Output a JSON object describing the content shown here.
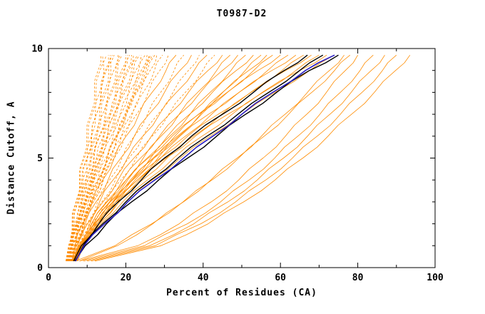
{
  "chart_data": {
    "type": "line",
    "title": "T0987-D2",
    "xlabel": "Percent of Residues (CA)",
    "ylabel": "Distance Cutoff, A",
    "xlim": [
      0,
      100
    ],
    "ylim": [
      0,
      10
    ],
    "x_ticks": [
      0,
      20,
      40,
      60,
      80,
      100
    ],
    "y_ticks": [
      0,
      5,
      10
    ],
    "x_minor_step": 10,
    "y_minor_step": 1,
    "grid": false,
    "legend": "none",
    "axis_color": "#000000",
    "background": "#ffffff",
    "y_samples": [
      0.3,
      1,
      2,
      3,
      4,
      5,
      6,
      7,
      8,
      9,
      9.7
    ],
    "groups": [
      {
        "name": "prediction-curves-dashed",
        "color": "#ff8c00",
        "width": 0.8,
        "dash": "3 2.5",
        "curves": [
          [
            4.5,
            5.2,
            6.1,
            7.1,
            8.0,
            9.0,
            9.9,
            10.9,
            11.9,
            12.8,
            13.5
          ],
          [
            5.0,
            5.7,
            6.8,
            7.9,
            8.9,
            10.0,
            11.1,
            12.1,
            13.2,
            14.3,
            15.0
          ],
          [
            4.8,
            5.4,
            6.4,
            7.5,
            8.6,
            9.9,
            11.1,
            12.4,
            13.7,
            15.0,
            16.0
          ],
          [
            5.2,
            6.1,
            7.3,
            8.6,
            9.8,
            11.1,
            12.4,
            13.6,
            14.9,
            16.1,
            17.0
          ],
          [
            5.5,
            6.1,
            7.3,
            8.5,
            9.8,
            11.1,
            12.5,
            14.0,
            15.4,
            16.9,
            18.0
          ],
          [
            4.6,
            5.7,
            7.2,
            8.7,
            10.3,
            11.8,
            13.3,
            14.9,
            16.4,
            17.9,
            19.0
          ],
          [
            5.0,
            6.1,
            7.7,
            9.3,
            10.9,
            12.5,
            14.1,
            15.7,
            17.3,
            18.9,
            20.0
          ],
          [
            5.4,
            6.2,
            7.6,
            9.1,
            10.8,
            12.4,
            14.2,
            16.0,
            17.8,
            19.7,
            21.0
          ],
          [
            4.7,
            6.0,
            7.8,
            9.7,
            11.5,
            13.4,
            15.2,
            17.0,
            18.9,
            20.7,
            22.0
          ],
          [
            5.1,
            6.0,
            7.6,
            9.4,
            11.2,
            13.2,
            15.2,
            17.2,
            19.3,
            21.5,
            23.0
          ],
          [
            5.6,
            7.0,
            8.9,
            10.9,
            12.8,
            14.8,
            16.7,
            18.7,
            20.7,
            22.6,
            24.0
          ],
          [
            4.9,
            5.9,
            7.7,
            9.7,
            11.8,
            14.0,
            16.2,
            18.5,
            20.9,
            23.3,
            25.0
          ],
          [
            5.3,
            6.8,
            9.0,
            11.2,
            13.5,
            15.7,
            17.8,
            20.1,
            22.3,
            24.5,
            26.0
          ],
          [
            5.7,
            6.8,
            8.7,
            10.8,
            13.0,
            15.3,
            17.7,
            20.1,
            22.6,
            25.2,
            27.0
          ],
          [
            5.0,
            6.7,
            9.2,
            11.6,
            14.1,
            16.5,
            18.9,
            21.4,
            23.8,
            26.3,
            28.0
          ],
          [
            5.2,
            6.4,
            8.6,
            11.0,
            13.5,
            16.2,
            18.9,
            21.7,
            24.5,
            27.4,
            29.5
          ],
          [
            4.6,
            5.4,
            6.6,
            7.7,
            8.9,
            10.1,
            11.2,
            12.4,
            13.5,
            14.7,
            15.5
          ],
          [
            4.8,
            5.8,
            7.3,
            8.7,
            10.2,
            11.7,
            13.1,
            14.6,
            16.0,
            17.5,
            18.5
          ],
          [
            5.1,
            6.3,
            7.9,
            9.5,
            11.2,
            12.8,
            14.4,
            16.1,
            17.7,
            19.4,
            20.5
          ],
          [
            5.3,
            6.2,
            7.8,
            9.6,
            11.5,
            13.5,
            15.5,
            17.6,
            19.8,
            22.0,
            23.5
          ],
          [
            5.6,
            7.1,
            9.2,
            11.3,
            13.4,
            15.6,
            17.7,
            19.8,
            21.9,
            24.0,
            25.5
          ],
          [
            4.9,
            6.0,
            8.1,
            10.3,
            12.7,
            15.1,
            17.6,
            20.2,
            22.9,
            25.6,
            27.5
          ],
          [
            4.5,
            5.2,
            6.2,
            7.2,
            8.2,
            9.3,
            10.3,
            11.3,
            12.3,
            13.3,
            14.0
          ],
          [
            5.0,
            5.9,
            7.1,
            8.3,
            9.5,
            10.8,
            12.0,
            13.2,
            14.4,
            15.6,
            16.5
          ],
          [
            5.5,
            6.7,
            8.4,
            10.1,
            11.8,
            13.5,
            15.2,
            16.9,
            18.6,
            20.3,
            21.5
          ],
          [
            5.8,
            6.8,
            8.7,
            10.7,
            12.9,
            15.1,
            17.4,
            19.8,
            22.3,
            24.7,
            26.5
          ],
          [
            5.5,
            6.8,
            9.1,
            11.6,
            14.2,
            17.0,
            19.8,
            22.8,
            25.8,
            28.8,
            31.0
          ],
          [
            5.8,
            7.3,
            9.9,
            12.7,
            15.8,
            19.0,
            22.2,
            25.6,
            29.0,
            32.5,
            35.0
          ],
          [
            5.9,
            7.6,
            10.5,
            13.8,
            17.3,
            20.8,
            24.5,
            28.3,
            32.2,
            36.2,
            39.0
          ],
          [
            6.0,
            7.9,
            11.2,
            14.8,
            18.7,
            22.7,
            26.8,
            31.1,
            35.4,
            39.9,
            43.0
          ]
        ]
      },
      {
        "name": "prediction-curves-solid",
        "color": "#ff8c00",
        "width": 0.8,
        "dash": "",
        "curves": [
          [
            6.0,
            6.9,
            8.9,
            11.3,
            14.0,
            17.0,
            20.1,
            23.4,
            26.8,
            30.4,
            33.0
          ],
          [
            6.2,
            7.2,
            9.5,
            12.3,
            15.4,
            18.7,
            22.2,
            26.0,
            30.0,
            34.0,
            37.0
          ],
          [
            6.4,
            7.6,
            10.1,
            13.2,
            16.7,
            20.4,
            24.4,
            28.7,
            33.1,
            37.7,
            41.0
          ],
          [
            6.5,
            7.8,
            10.7,
            14.1,
            18.0,
            22.1,
            26.6,
            31.3,
            36.2,
            41.3,
            45.0
          ],
          [
            6.1,
            8.2,
            11.8,
            15.8,
            20.1,
            24.5,
            29.1,
            33.8,
            38.6,
            43.5,
            47.0
          ],
          [
            6.6,
            8.0,
            11.2,
            15.0,
            19.2,
            23.8,
            28.7,
            33.9,
            39.3,
            45.0,
            49.0
          ],
          [
            6.2,
            8.5,
            12.5,
            16.9,
            21.6,
            26.4,
            31.4,
            36.6,
            41.8,
            47.2,
            51.0
          ],
          [
            6.7,
            8.3,
            11.7,
            15.8,
            20.5,
            25.5,
            30.8,
            36.5,
            42.4,
            48.6,
            53.0
          ],
          [
            6.3,
            8.7,
            13.1,
            17.9,
            23.0,
            28.3,
            33.7,
            39.3,
            45.0,
            50.9,
            55.0
          ],
          [
            6.8,
            8.5,
            12.2,
            16.6,
            21.6,
            27.0,
            32.7,
            38.8,
            45.1,
            51.8,
            56.5
          ],
          [
            6.4,
            8.2,
            12.0,
            16.6,
            21.8,
            27.3,
            33.3,
            39.6,
            46.2,
            53.1,
            58.0
          ],
          [
            7.0,
            8.1,
            11.1,
            15.2,
            20.1,
            25.8,
            32.0,
            38.9,
            46.3,
            54.2,
            60.0
          ],
          [
            6.5,
            8.4,
            12.5,
            17.4,
            23.0,
            29.0,
            35.4,
            42.2,
            49.3,
            56.7,
            62.0
          ],
          [
            7.2,
            8.4,
            11.6,
            16.0,
            21.2,
            27.3,
            34.0,
            41.4,
            49.3,
            57.8,
            64.0
          ],
          [
            6.6,
            8.6,
            13.0,
            18.3,
            24.3,
            30.7,
            37.5,
            44.8,
            52.4,
            60.4,
            66.0
          ],
          [
            7.4,
            8.6,
            12.1,
            16.7,
            22.4,
            28.9,
            36.0,
            43.9,
            52.3,
            61.4,
            68.0
          ],
          [
            6.7,
            8.9,
            13.5,
            19.2,
            25.6,
            32.4,
            39.7,
            47.5,
            55.5,
            64.0,
            70.0
          ],
          [
            7.6,
            8.9,
            12.6,
            17.5,
            23.5,
            30.4,
            38.0,
            46.4,
            55.3,
            65.0,
            72.0
          ],
          [
            6.8,
            9.1,
            14.1,
            20.0,
            26.8,
            34.1,
            41.8,
            50.1,
            58.6,
            67.6,
            74.0
          ],
          [
            8.0,
            17.8,
            27.0,
            34.9,
            42.0,
            48.8,
            55.1,
            61.2,
            67.0,
            72.7,
            76.5
          ],
          [
            7.0,
            17.2,
            26.7,
            34.8,
            42.3,
            49.2,
            55.8,
            62.1,
            68.1,
            74.0,
            78.0
          ],
          [
            8.0,
            23.1,
            33.8,
            42.1,
            49.2,
            55.5,
            61.3,
            66.8,
            71.9,
            76.8,
            80.0
          ],
          [
            9.0,
            24.8,
            35.9,
            44.5,
            51.9,
            58.5,
            64.5,
            70.2,
            75.5,
            80.6,
            84.0
          ],
          [
            10.0,
            26.2,
            37.6,
            46.4,
            54.0,
            60.8,
            67.0,
            72.8,
            78.3,
            83.5,
            87.0
          ],
          [
            11.0,
            27.6,
            39.4,
            48.4,
            56.2,
            63.1,
            69.5,
            75.5,
            81.1,
            86.4,
            90.0
          ],
          [
            12.0,
            29.1,
            41.3,
            50.5,
            58.6,
            65.8,
            72.3,
            78.4,
            84.3,
            89.8,
            93.5
          ]
        ]
      },
      {
        "name": "highlighted-model-curves",
        "color": "#000000",
        "width": 1.4,
        "dash": "",
        "curves": [
          [
            6.5,
            8.5,
            13.0,
            18.0,
            24.0,
            30.0,
            37.0,
            45.0,
            53.0,
            61.0,
            67.0
          ],
          [
            7.0,
            9.0,
            14.0,
            20.0,
            26.5,
            33.5,
            41.0,
            49.0,
            57.0,
            65.0,
            71.0
          ],
          [
            6.8,
            9.5,
            15.0,
            21.5,
            28.5,
            36.0,
            43.5,
            51.0,
            59.0,
            67.5,
            75.0
          ]
        ]
      },
      {
        "name": "best-model-curve",
        "color": "#2a1fc4",
        "width": 1.6,
        "dash": "",
        "curves": [
          [
            7.0,
            9.2,
            14.5,
            20.5,
            27.5,
            35.0,
            42.5,
            50.0,
            58.0,
            66.5,
            74.0
          ]
        ]
      }
    ]
  }
}
